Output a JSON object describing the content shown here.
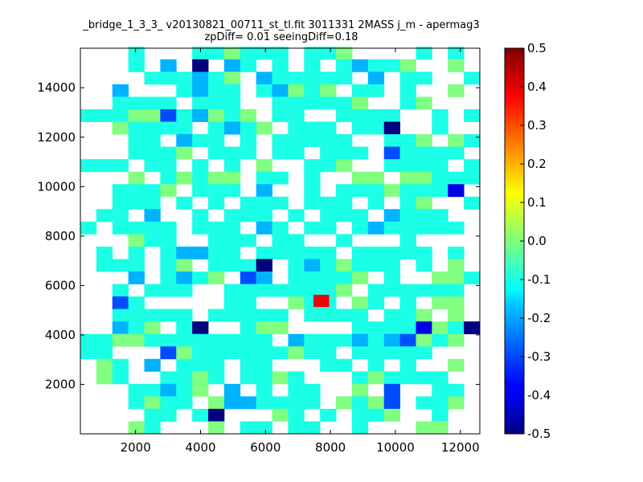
{
  "chart_data": {
    "type": "heatmap",
    "title_line1": "_bridge_1_3_3_ v20130821_00711_st_tl.fit 3011331 2MASS j_m - apermag3",
    "title_line2": "zpDiff= 0.01 seeingDiff=0.18",
    "xlabel": "",
    "ylabel": "",
    "xlim": [
      300,
      12600
    ],
    "ylim": [
      0,
      15600
    ],
    "x_ticks": [
      2000,
      4000,
      6000,
      8000,
      10000,
      12000
    ],
    "y_ticks": [
      2000,
      4000,
      6000,
      8000,
      10000,
      12000,
      14000
    ],
    "colorbar": {
      "colormap": "jet",
      "vmin": -0.5,
      "vmax": 0.5,
      "ticks": [
        "0.5",
        "0.4",
        "0.3",
        "0.2",
        "0.1",
        "0.0",
        "-0.1",
        "-0.2",
        "-0.3",
        "-0.4",
        "-0.5"
      ]
    },
    "grid": {
      "x0": 300,
      "y0": 0,
      "x_step": 492,
      "y_step": 505,
      "n_cols": 25,
      "n_rows": 31,
      "row_order": "top-to-bottom",
      "legend": "one character per bin: '.' = empty, A..K = -0.5..0.5 in steps of 0.1",
      "rows": [
        "...E...EEFEEE.EEF....E.E.",
        "...E.D.A.DE.E.E.EDEEF..F.",
        "....EEEDEF.DEEEEE.D.EE..E",
        "..D...EDEE.EDFEF.EE.E..F.",
        "..EEEE.EEE..EEEEEF..EF...",
        "EEEFFCEDFEF.EE..EEEE..E.E",
        "..FEEEE.EDEF.EEE.EEA..E..",
        "...EE.DEE.E.EEEEE..EEF.FE",
        "...EEEF.EEE.EE.EEE.CEEEE.",
        "EEE.EE.E.E.F..EEF..EEEE.E",
        "...F.EFEFF.EE.E..FF.FFEEE",
        "..EEEF.EEE.D..E.EEEFEEEB.",
        "..EEE.E.E.EEE.EEE.E.EF..E",
        ".EE.D..E.EEE.E.EEE.DEEE..",
        "E.EEEE.EEE.DE.EE.EDEEEEE.",
        "...FEE..EEE.EE..E...E....",
        ".E.E.EDDEE.EEEEE.EEEEE.E.",
        ".EEE.EF.EEEA.EDEFEEE.E.F.",
        "...D.EDEF.CD.EEEEF.E..FFE",
        "..E.EEE..EEEEEEEF.EEEEEE.",
        "..CE.....EE..FEE.FE.E.FF.",
        "..EEEEE.EEEEE.EEEE.EEF.F.",
        "..DEF.EA..EFF....EEEEBFEA",
        "EEFFEEEEEEEE.DEEEDEDCFEF.",
        "EE...CFEEEEEEFEE.EEEEE...",
        ".FE.D.EEE.EE...EE.E.E..F.",
        ".FE..EEFE.EEFE...EFEEEE..",
        "...EEDEF.D.E.EE..F.C..EE.",
        "...EFEE.FDDEEEE.FEFC.EEF.",
        "....EE.EA...FE.E.EEF..E..",
        "...FE...F.EE.EE..E...FF.."
      ],
      "outliers": [
        {
          "x": 7477,
          "y": 5131,
          "value": 0.39
        }
      ]
    }
  }
}
